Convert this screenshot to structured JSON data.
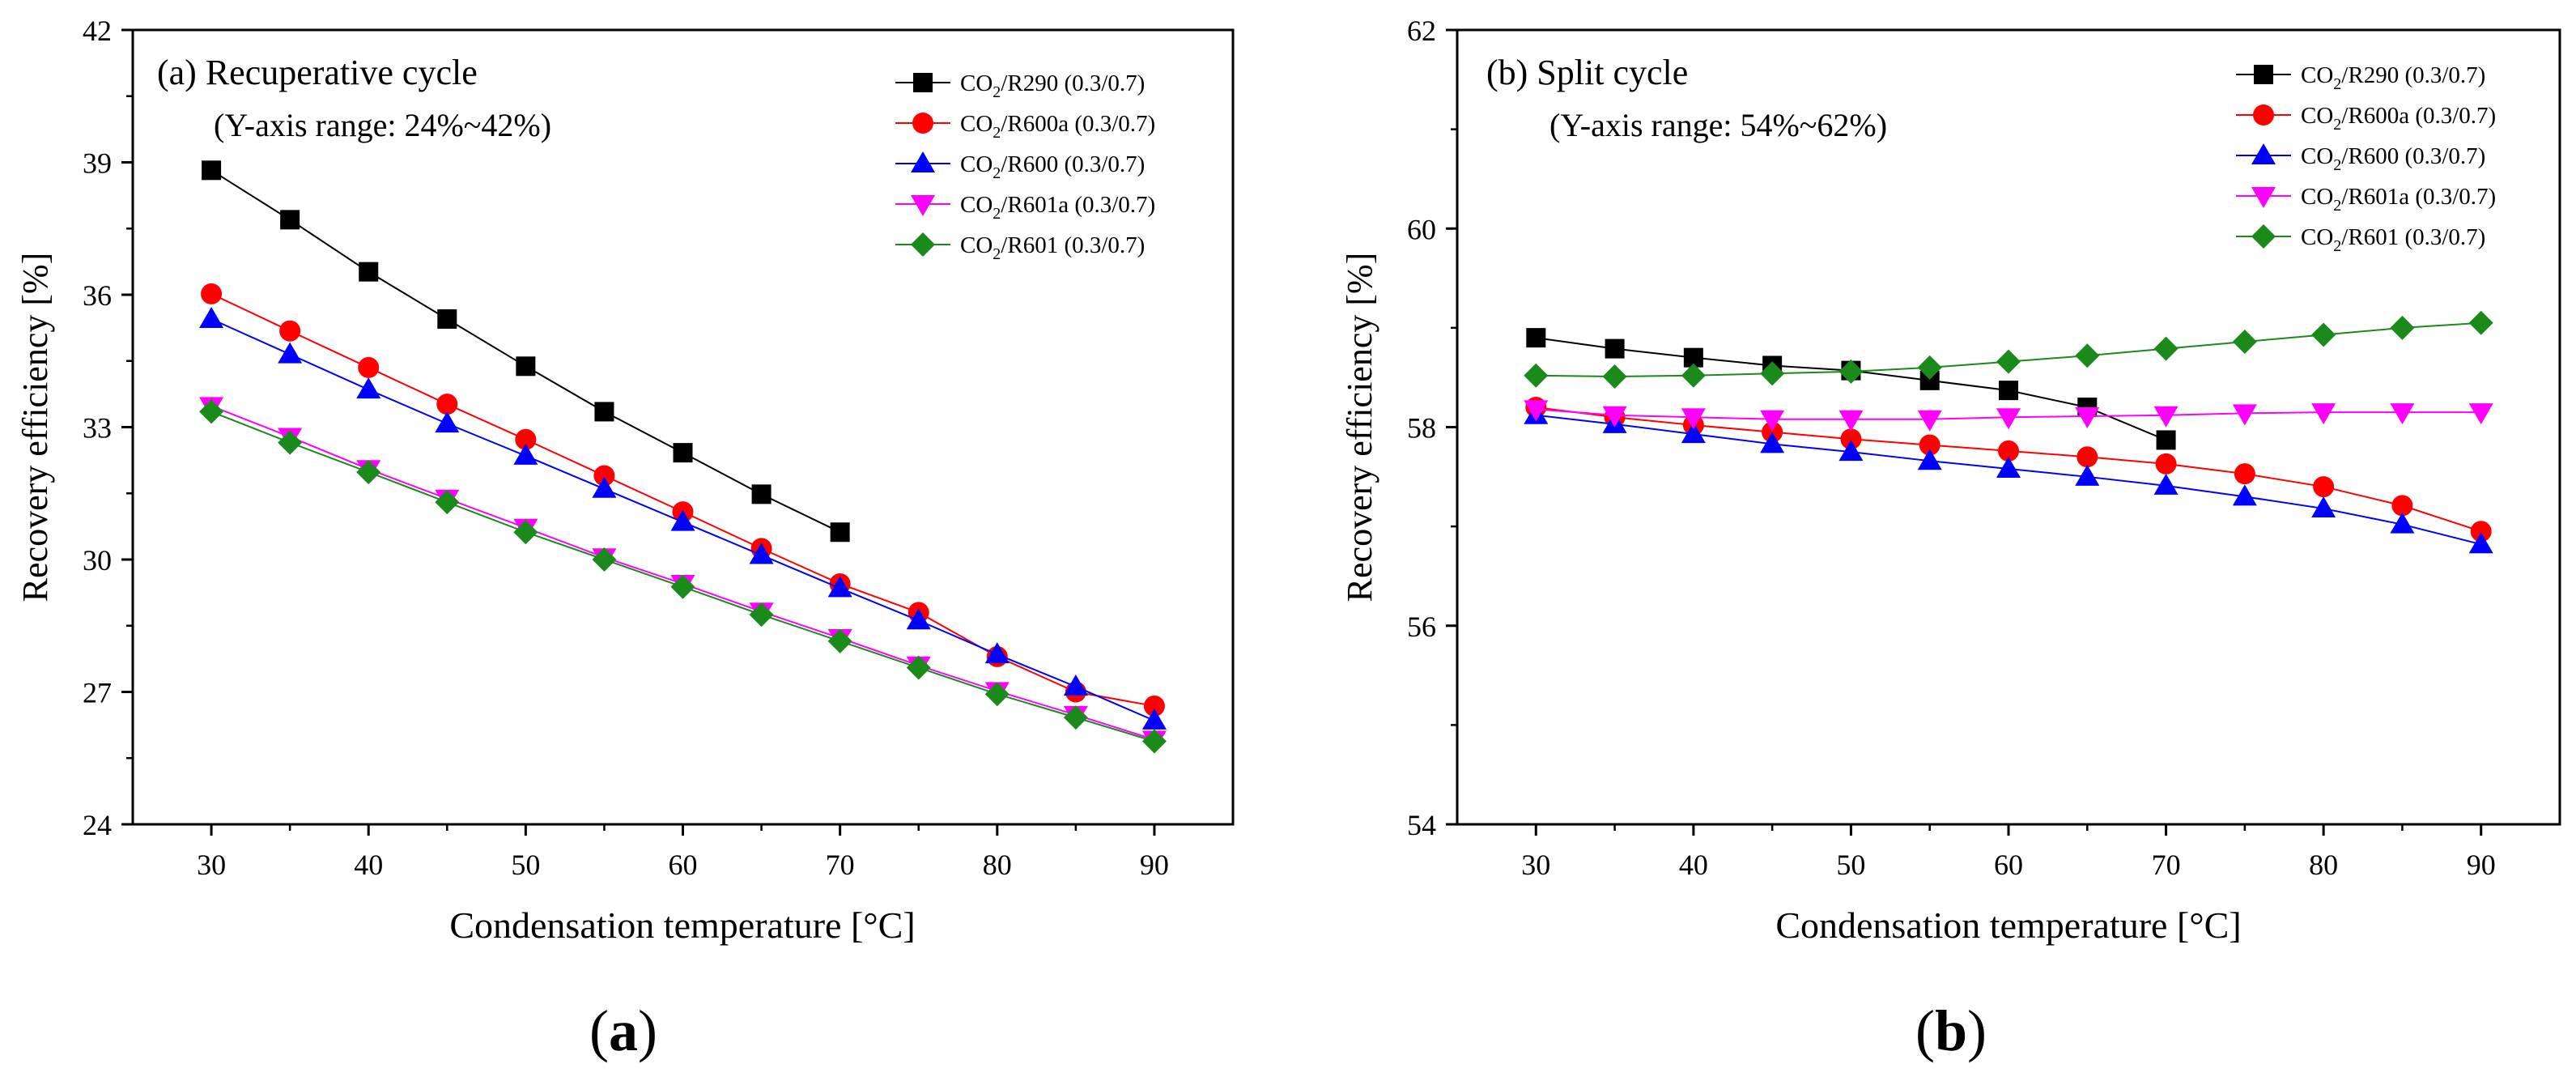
{
  "chart_data": [
    {
      "type": "line",
      "panel_label": "(a)",
      "title": "(a) Recuperative cycle",
      "subtitle": "(Y-axis range: 24%~42%)",
      "xlabel": "Condensation temperature [°C]",
      "ylabel": "Recovery efficiency [%]",
      "xlim": [
        25,
        95
      ],
      "ylim": [
        24,
        42
      ],
      "xticks": [
        30,
        40,
        50,
        60,
        70,
        80,
        90
      ],
      "yticks": [
        24,
        27,
        30,
        33,
        36,
        39,
        42
      ],
      "legend_position": "top-right",
      "series": [
        {
          "name": "CO2/R290 (0.3/0.7)",
          "legend_sub": "2",
          "legend_pre": "CO",
          "legend_post": "/R290 (0.3/0.7)",
          "marker": "square",
          "color": "#000000",
          "x": [
            30,
            35,
            40,
            45,
            50,
            55,
            60,
            65,
            70
          ],
          "values": [
            38.82,
            37.7,
            36.52,
            35.45,
            34.38,
            33.35,
            32.42,
            31.48,
            30.62
          ]
        },
        {
          "name": "CO2/R600a (0.3/0.7)",
          "legend_pre": "CO",
          "legend_sub": "2",
          "legend_post": "/R600a (0.3/0.7)",
          "marker": "circle",
          "color": "#ff0000",
          "x": [
            30,
            35,
            40,
            45,
            50,
            55,
            60,
            65,
            70,
            75,
            80,
            85,
            90
          ],
          "values": [
            36.02,
            35.18,
            34.35,
            33.52,
            32.72,
            31.9,
            31.08,
            30.25,
            29.45,
            28.8,
            27.8,
            27.0,
            26.68
          ]
        },
        {
          "name": "CO2/R600 (0.3/0.7)",
          "legend_pre": "CO",
          "legend_sub": "2",
          "legend_post": "/R600 (0.3/0.7)",
          "marker": "triangle-up",
          "color": "#0000ff",
          "x": [
            30,
            35,
            40,
            45,
            50,
            55,
            60,
            65,
            70,
            75,
            80,
            85,
            90
          ],
          "values": [
            35.45,
            34.65,
            33.85,
            33.08,
            32.35,
            31.6,
            30.85,
            30.1,
            29.35,
            28.62,
            27.85,
            27.12,
            26.35
          ]
        },
        {
          "name": "CO2/R601a (0.3/0.7)",
          "legend_pre": "CO",
          "legend_sub": "2",
          "legend_post": "/R601a (0.3/0.7)",
          "marker": "triangle-down",
          "color": "#ff00ff",
          "x": [
            30,
            35,
            40,
            45,
            50,
            55,
            60,
            65,
            70,
            75,
            80,
            85,
            90
          ],
          "values": [
            33.48,
            32.78,
            32.05,
            31.38,
            30.72,
            30.05,
            29.45,
            28.82,
            28.22,
            27.6,
            27.02,
            26.48,
            25.92
          ]
        },
        {
          "name": "CO2/R601 (0.3/0.7)",
          "legend_pre": "CO",
          "legend_sub": "2",
          "legend_post": "/R601 (0.3/0.7)",
          "marker": "diamond",
          "color": "#1a8a1a",
          "x": [
            30,
            35,
            40,
            45,
            50,
            55,
            60,
            65,
            70,
            75,
            80,
            85,
            90
          ],
          "values": [
            33.35,
            32.65,
            31.98,
            31.3,
            30.62,
            30.0,
            29.38,
            28.75,
            28.15,
            27.55,
            26.95,
            26.42,
            25.88
          ]
        }
      ]
    },
    {
      "type": "line",
      "panel_label": "(b)",
      "title": "(b) Split cycle",
      "subtitle": "(Y-axis range: 54%~62%)",
      "xlabel": "Condensation temperature [°C]",
      "ylabel": "Recovery efficiency [%]",
      "xlim": [
        25,
        95
      ],
      "ylim": [
        54,
        62
      ],
      "xticks": [
        30,
        40,
        50,
        60,
        70,
        80,
        90
      ],
      "yticks": [
        54,
        56,
        58,
        60,
        62
      ],
      "legend_position": "top-right",
      "series": [
        {
          "name": "CO2/R290 (0.3/0.7)",
          "legend_pre": "CO",
          "legend_sub": "2",
          "legend_post": "/R290 (0.3/0.7)",
          "marker": "square",
          "color": "#000000",
          "x": [
            30,
            35,
            40,
            45,
            50,
            55,
            60,
            65,
            70
          ],
          "values": [
            58.9,
            58.79,
            58.7,
            58.62,
            58.57,
            58.47,
            58.37,
            58.2,
            57.87
          ]
        },
        {
          "name": "CO2/R600a (0.3/0.7)",
          "legend_pre": "CO",
          "legend_sub": "2",
          "legend_post": "/R600a (0.3/0.7)",
          "marker": "circle",
          "color": "#ff0000",
          "x": [
            30,
            35,
            40,
            45,
            50,
            55,
            60,
            65,
            70,
            75,
            80,
            85,
            90
          ],
          "values": [
            58.2,
            58.1,
            58.02,
            57.95,
            57.88,
            57.82,
            57.76,
            57.7,
            57.63,
            57.53,
            57.4,
            57.21,
            56.95
          ]
        },
        {
          "name": "CO2/R600 (0.3/0.7)",
          "legend_pre": "CO",
          "legend_sub": "2",
          "legend_post": "/R600 (0.3/0.7)",
          "marker": "triangle-up",
          "color": "#0000ff",
          "x": [
            30,
            35,
            40,
            45,
            50,
            55,
            60,
            65,
            70,
            75,
            80,
            85,
            90
          ],
          "values": [
            58.12,
            58.03,
            57.93,
            57.83,
            57.75,
            57.66,
            57.58,
            57.5,
            57.41,
            57.3,
            57.18,
            57.02,
            56.82
          ]
        },
        {
          "name": "CO2/R601a (0.3/0.7)",
          "legend_pre": "CO",
          "legend_sub": "2",
          "legend_post": "/R601a (0.3/0.7)",
          "marker": "triangle-down",
          "color": "#ff00ff",
          "x": [
            30,
            35,
            40,
            45,
            50,
            55,
            60,
            65,
            70,
            75,
            80,
            85,
            90
          ],
          "values": [
            58.18,
            58.12,
            58.1,
            58.08,
            58.08,
            58.08,
            58.1,
            58.11,
            58.12,
            58.14,
            58.15,
            58.15,
            58.15
          ]
        },
        {
          "name": "CO2/R601 (0.3/0.7)",
          "legend_pre": "CO",
          "legend_sub": "2",
          "legend_post": "/R601 (0.3/0.7)",
          "marker": "diamond",
          "color": "#1a8a1a",
          "x": [
            30,
            35,
            40,
            45,
            50,
            55,
            60,
            65,
            70,
            75,
            80,
            85,
            90
          ],
          "values": [
            58.52,
            58.51,
            58.52,
            58.54,
            58.56,
            58.6,
            58.66,
            58.72,
            58.79,
            58.86,
            58.93,
            59.0,
            59.05
          ]
        }
      ]
    }
  ]
}
